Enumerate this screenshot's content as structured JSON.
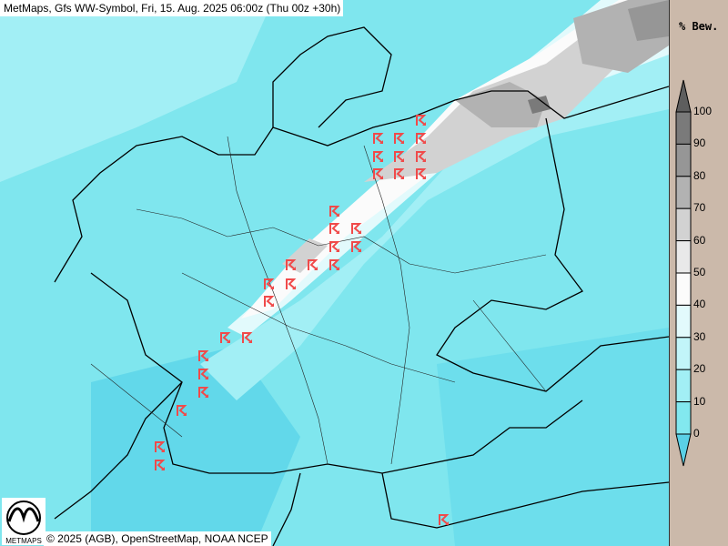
{
  "header": {
    "title": "MetMaps, Gfs WW-Symbol, Fri, 15. Aug. 2025 06:00z (Thu 00z +30h)"
  },
  "legend": {
    "title": "% Bew.",
    "ticks": [
      "100",
      "90",
      "80",
      "70",
      "60",
      "50",
      "40",
      "30",
      "20",
      "10",
      "0"
    ],
    "colors": [
      "#7a7a7a",
      "#969696",
      "#b2b2b2",
      "#d2d2d2",
      "#e9e9e9",
      "#fbfbfb",
      "#e2fafc",
      "#c2f5f9",
      "#a2eff5",
      "#82e8ef"
    ],
    "over_color": "#5e5e5e",
    "under_color": "#5ad0e6"
  },
  "map": {
    "field": "cloud cover",
    "symbol_type": "thunderstorm-icon",
    "symbol_color": "#f04a4a",
    "border_color": "#000000"
  },
  "footer": {
    "credits": "© 2025 (AGB), OpenStreetMap, NOAA NCEP",
    "logo_text": "METMAPS"
  }
}
